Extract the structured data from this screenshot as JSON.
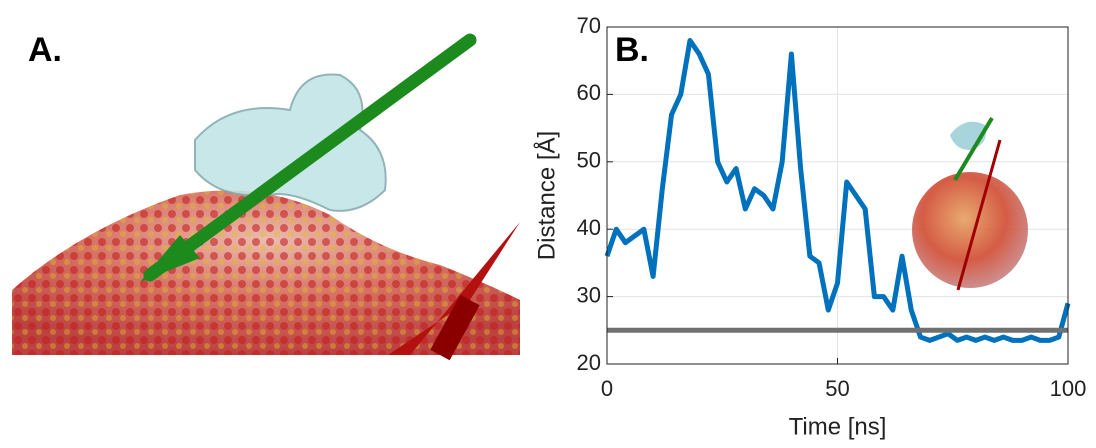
{
  "panel_a": {
    "label": "A."
  },
  "chart_data": {
    "type": "line",
    "panel_label": "B.",
    "x_label": "Time [ns]",
    "y_label": "Distance [Å]",
    "x": [
      0,
      2,
      4,
      6,
      8,
      10,
      12,
      14,
      16,
      18,
      20,
      22,
      24,
      26,
      28,
      30,
      32,
      34,
      36,
      38,
      40,
      42,
      44,
      46,
      48,
      50,
      52,
      54,
      56,
      58,
      60,
      62,
      64,
      66,
      68,
      70,
      72,
      74,
      76,
      78,
      80,
      82,
      84,
      86,
      88,
      90,
      92,
      94,
      96,
      98,
      100
    ],
    "series": [
      {
        "name": "Distance",
        "color": "#0072bd",
        "values": [
          36,
          40,
          38,
          39,
          40,
          33,
          46,
          57,
          60,
          68,
          66,
          63,
          50,
          47,
          49,
          43,
          46,
          45,
          43,
          50,
          66,
          49,
          36,
          35,
          28,
          32,
          47,
          45,
          43,
          30,
          30,
          28,
          36,
          28,
          24,
          23.5,
          24,
          24.5,
          23.5,
          24,
          23.5,
          24,
          23.5,
          24,
          23.5,
          23.5,
          24,
          23.5,
          23.5,
          24,
          29
        ]
      }
    ],
    "reference_line": {
      "value": 25,
      "color": "#707070"
    },
    "xlim": [
      0,
      100
    ],
    "ylim": [
      20,
      70
    ],
    "xticks": [
      0,
      50,
      100
    ],
    "yticks": [
      20,
      30,
      40,
      50,
      60,
      70
    ],
    "grid": true
  }
}
